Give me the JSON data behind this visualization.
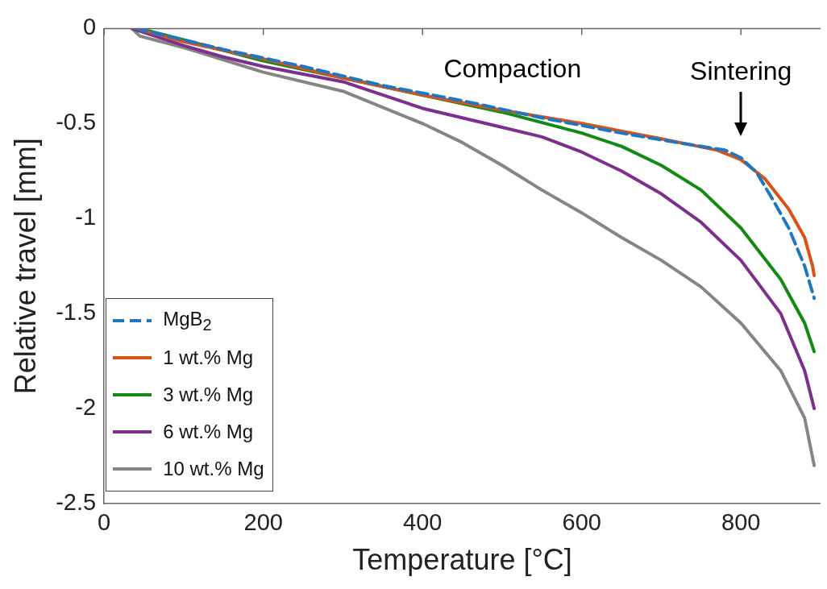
{
  "chart_data": {
    "type": "line",
    "xlabel": "Temperature [°C]",
    "ylabel": "Relative travel [mm]",
    "xlim": [
      0,
      900
    ],
    "xticks": [
      0,
      200,
      400,
      600,
      800
    ],
    "ylim": [
      -2.5,
      0
    ],
    "yticks": [
      0,
      -0.5,
      -1,
      -1.5,
      -2,
      -2.5
    ],
    "grid": false,
    "legend": "bottom left",
    "marker": "none",
    "annotations": [
      "Compaction",
      {
        "text": "Sintering",
        "x": 800,
        "y": -0.68
      }
    ],
    "series": [
      {
        "name": "MgB$_{2}$",
        "color": "#1f77c4",
        "line_style": "dashed",
        "x": [
          40,
          100,
          150,
          250,
          350,
          450,
          550,
          650,
          720,
          780,
          800,
          820,
          840,
          860,
          880,
          892
        ],
        "values": [
          0,
          -0.06,
          -0.11,
          -0.2,
          -0.3,
          -0.38,
          -0.47,
          -0.55,
          -0.6,
          -0.64,
          -0.68,
          -0.76,
          -0.9,
          -1.05,
          -1.25,
          -1.42
        ]
      },
      {
        "name": "1 wt.% Mg",
        "color": "#d95319",
        "line_style": "solid",
        "x": [
          40,
          100,
          200,
          300,
          400,
          500,
          600,
          700,
          770,
          800,
          830,
          860,
          880,
          890,
          892
        ],
        "values": [
          0,
          -0.07,
          -0.16,
          -0.26,
          -0.35,
          -0.43,
          -0.5,
          -0.58,
          -0.64,
          -0.69,
          -0.79,
          -0.95,
          -1.1,
          -1.25,
          -1.3
        ]
      },
      {
        "name": "3 wt.% Mg",
        "color": "#138a13",
        "line_style": "solid",
        "x": [
          45,
          100,
          200,
          300,
          400,
          500,
          600,
          650,
          700,
          750,
          800,
          850,
          880,
          892
        ],
        "values": [
          0,
          -0.06,
          -0.17,
          -0.26,
          -0.35,
          -0.44,
          -0.55,
          -0.62,
          -0.72,
          -0.85,
          -1.05,
          -1.32,
          -1.55,
          -1.7
        ]
      },
      {
        "name": "6 wt.% Mg",
        "color": "#7e2f8e",
        "line_style": "solid",
        "x": [
          35,
          100,
          150,
          200,
          300,
          400,
          500,
          550,
          600,
          650,
          700,
          750,
          800,
          850,
          880,
          892
        ],
        "values": [
          0,
          -0.09,
          -0.15,
          -0.2,
          -0.28,
          -0.42,
          -0.52,
          -0.57,
          -0.65,
          -0.75,
          -0.87,
          -1.02,
          -1.22,
          -1.5,
          -1.8,
          -2.0
        ]
      },
      {
        "name": "10 wt.% Mg",
        "color": "#858585",
        "line_style": "solid",
        "x": [
          35,
          45,
          100,
          200,
          300,
          400,
          450,
          500,
          550,
          600,
          650,
          700,
          750,
          800,
          850,
          880,
          892
        ],
        "values": [
          0,
          -0.04,
          -0.1,
          -0.23,
          -0.33,
          -0.5,
          -0.6,
          -0.72,
          -0.85,
          -0.97,
          -1.1,
          -1.22,
          -1.36,
          -1.55,
          -1.8,
          -2.05,
          -2.3
        ]
      }
    ]
  }
}
